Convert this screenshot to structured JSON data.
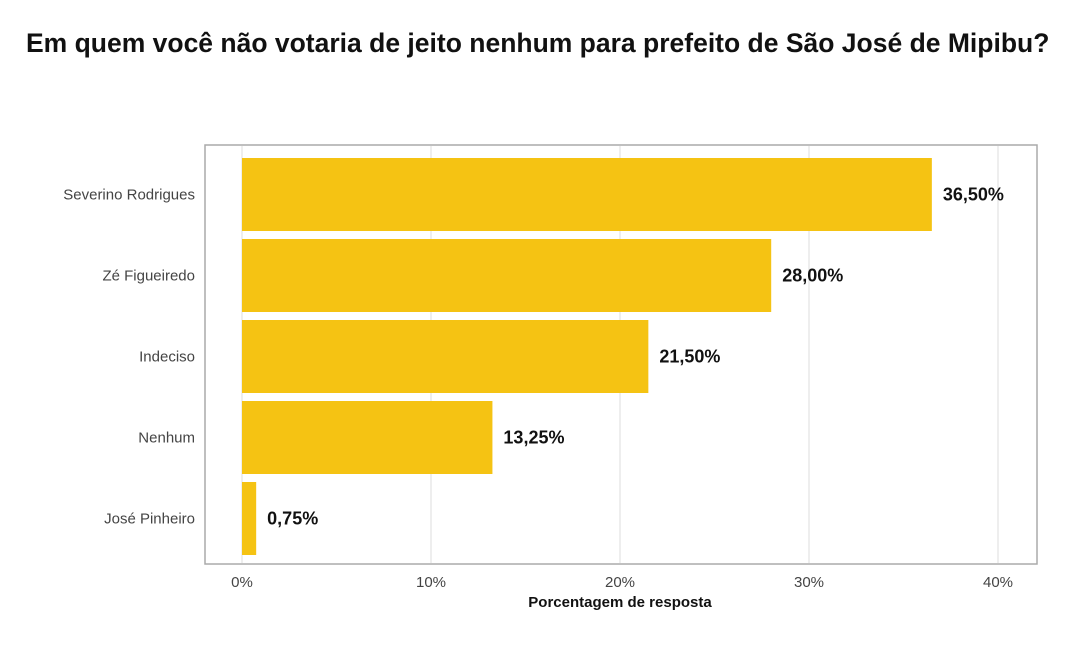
{
  "chart_data": {
    "type": "bar",
    "orientation": "horizontal",
    "title": "Em quem você não votaria de jeito nenhum para prefeito de São José de Mipibu?",
    "xlabel": "Porcentagem de resposta",
    "ylabel": "",
    "categories": [
      "Severino Rodrigues",
      "Zé Figueiredo",
      "Indeciso",
      "Nenhum",
      "José Pinheiro"
    ],
    "values": [
      36.5,
      28.0,
      21.5,
      13.25,
      0.75
    ],
    "value_labels": [
      "36,50%",
      "28,00%",
      "21,50%",
      "13,25%",
      "0,75%"
    ],
    "xlim": [
      0,
      40
    ],
    "x_ticks": [
      0,
      10,
      20,
      30,
      40
    ],
    "x_tick_labels": [
      "0%",
      "10%",
      "20%",
      "30%",
      "40%"
    ],
    "grid": true,
    "legend": "none",
    "colors": {
      "bar": "#F5C313",
      "grid": "#DDDDDD",
      "frame": "#AAAAAA"
    }
  }
}
